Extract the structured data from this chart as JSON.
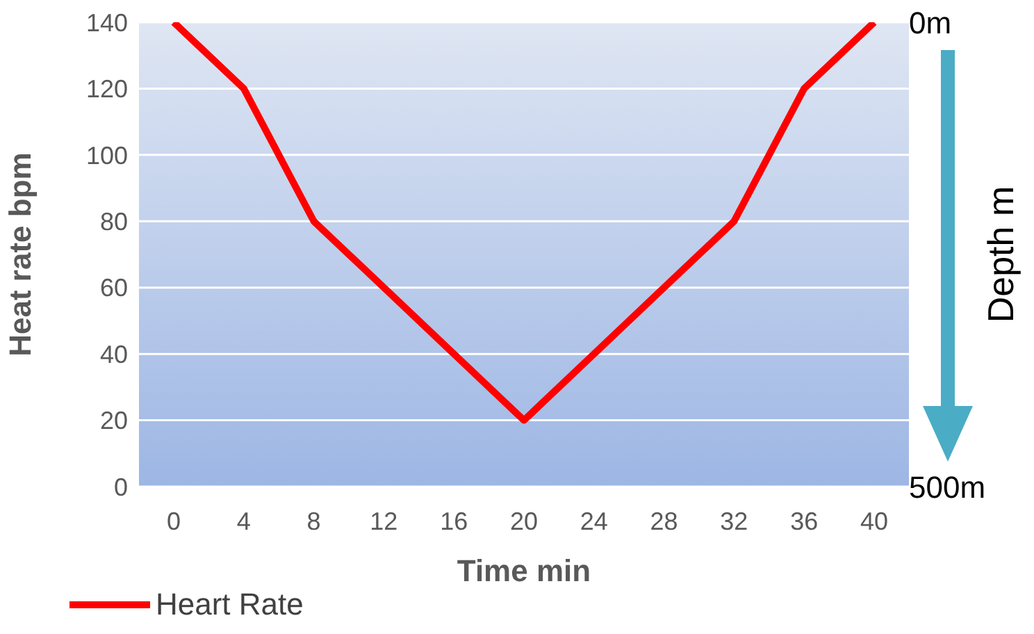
{
  "chart_data": {
    "type": "line",
    "xlabel": "Time min",
    "ylabel": "Heat rate bpm",
    "y2label": "Depth m",
    "categories": [
      "0",
      "4",
      "8",
      "12",
      "16",
      "20",
      "24",
      "28",
      "32",
      "36",
      "40"
    ],
    "series": [
      {
        "name": "Heart Rate",
        "color": "#ff0000",
        "values": [
          140,
          120,
          80,
          60,
          40,
          20,
          40,
          60,
          80,
          120,
          140
        ]
      }
    ],
    "ylim": [
      0,
      140
    ],
    "yticks": [
      0,
      20,
      40,
      60,
      80,
      100,
      120,
      140
    ],
    "y2lim": [
      500,
      0
    ],
    "y2ticks": [
      {
        "value": 0,
        "label": "0m"
      },
      {
        "value": 500,
        "label": "500m"
      }
    ],
    "grid": "y",
    "legend": "bottom left",
    "marker": "none",
    "line_style": "solid"
  }
}
